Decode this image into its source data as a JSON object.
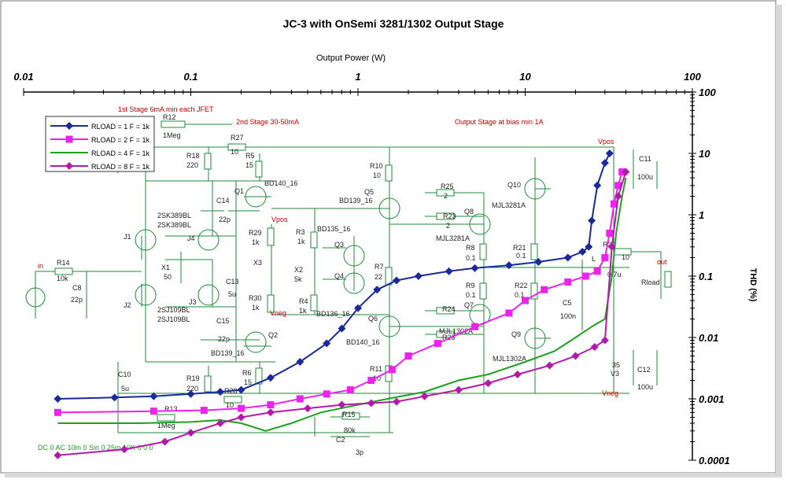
{
  "chart_data": {
    "type": "line",
    "title": "JC-3 with OnSemi 3281/1302 Output Stage",
    "xlabel": "Output Power (W)",
    "ylabel": "THD (%)",
    "xscale": "log",
    "yscale": "log",
    "xlim": [
      0.01,
      100
    ],
    "ylim": [
      0.0001,
      100
    ],
    "x_ticks": [
      "0.01",
      "0.1",
      "1",
      "10",
      "100"
    ],
    "y_ticks": [
      "100",
      "10",
      "1",
      "0.1",
      "0.01",
      "0.001",
      "0.0001"
    ],
    "legend_position": "top-left",
    "grid": false,
    "series": [
      {
        "name": "RLOAD = 1 F = 1k",
        "color": "#1a2a9a",
        "marker": "diamond",
        "x": [
          0.016,
          0.035,
          0.06,
          0.1,
          0.15,
          0.2,
          0.3,
          0.45,
          0.65,
          0.8,
          1.0,
          1.3,
          1.7,
          2.3,
          3.5,
          5,
          8,
          12,
          18,
          22,
          24,
          25,
          27,
          30,
          32
        ],
        "y": [
          0.001,
          0.00105,
          0.0011,
          0.0012,
          0.0013,
          0.0014,
          0.0022,
          0.004,
          0.008,
          0.014,
          0.03,
          0.06,
          0.085,
          0.1,
          0.12,
          0.135,
          0.15,
          0.17,
          0.2,
          0.25,
          0.3,
          0.8,
          3,
          7,
          10
        ]
      },
      {
        "name": "RLOAD = 2 F = 1k",
        "color": "#ee22ee",
        "marker": "square",
        "x": [
          0.016,
          0.06,
          0.12,
          0.2,
          0.3,
          0.45,
          0.65,
          0.9,
          1.2,
          1.6,
          2.0,
          3,
          5,
          8,
          10,
          13,
          18,
          23,
          27,
          30,
          32,
          34,
          36,
          38
        ],
        "y": [
          0.0006,
          0.00063,
          0.00065,
          0.0007,
          0.0008,
          0.001,
          0.0012,
          0.0014,
          0.002,
          0.003,
          0.005,
          0.008,
          0.015,
          0.025,
          0.04,
          0.06,
          0.08,
          0.1,
          0.12,
          0.2,
          0.5,
          1.5,
          3,
          5
        ]
      },
      {
        "name": "RLOAD = 4 F = 1k",
        "color": "#20a020",
        "marker": "none",
        "x": [
          0.016,
          0.05,
          0.1,
          0.15,
          0.2,
          0.28,
          0.4,
          0.6,
          1.0,
          1.5,
          2.5,
          4,
          6,
          10,
          15,
          20,
          25,
          30,
          33,
          35,
          38,
          40
        ],
        "y": [
          0.0004,
          0.0004,
          0.00042,
          0.00045,
          0.0004,
          0.0003,
          0.0004,
          0.0006,
          0.0008,
          0.001,
          0.0013,
          0.002,
          0.0025,
          0.004,
          0.006,
          0.01,
          0.015,
          0.02,
          0.1,
          0.5,
          2,
          4
        ]
      },
      {
        "name": "RLOAD = 8 F = 1k",
        "color": "#b21aa8",
        "marker": "diamond",
        "x": [
          0.016,
          0.04,
          0.07,
          0.1,
          0.15,
          0.2,
          0.3,
          0.5,
          0.8,
          1.2,
          1.7,
          2.5,
          4,
          6,
          9,
          14,
          20,
          26,
          30,
          33,
          36,
          40
        ],
        "y": [
          0.00012,
          0.00015,
          0.0002,
          0.00028,
          0.0004,
          0.0005,
          0.0006,
          0.0007,
          0.0008,
          0.00085,
          0.0009,
          0.0011,
          0.0014,
          0.0018,
          0.0025,
          0.0035,
          0.005,
          0.007,
          0.009,
          0.3,
          2,
          5
        ]
      }
    ]
  },
  "schematic_labels": [
    "1st Stage 6mA min each JFET",
    "2nd Stage 30-50mA",
    "Output Stage at bias min 1A",
    "R12",
    "1Meg",
    "R27",
    "10",
    "R18",
    "220",
    "R5",
    "15",
    "Q1",
    "BD140_16",
    "C14",
    "22p",
    "2SK389BL",
    "2SK389BL",
    "J1",
    "J4",
    "X1",
    "50",
    "J2",
    "J3",
    "2SJ109BL",
    "2SJ109BL",
    "C13",
    "5u",
    "C15",
    "22p",
    "Q2",
    "BD139_16",
    "R19",
    "220",
    "R6",
    "15",
    "R28",
    "10",
    "R13",
    "1Meg",
    "C10",
    "5u",
    "in",
    "R14",
    "10k",
    "C8",
    "22p",
    "Vpos",
    "R29",
    "1k",
    "X3",
    "R30",
    "1k",
    "Vneg",
    "R3",
    "1k",
    "X2",
    "5k",
    "R4",
    "1k",
    "BD135_16",
    "Q3",
    "Q4",
    "BD136_16",
    "R10",
    "10",
    "Q5",
    "BD139_16",
    "R7",
    "22",
    "Q6",
    "BD140_16",
    "R11",
    "10",
    "R25",
    "2",
    "R23",
    "2",
    "Q8",
    "MJL3281A",
    "Q10",
    "MJL3281A",
    "R8",
    "0.1",
    "R21",
    "0.1",
    "R9",
    "0.1",
    "R22",
    "0.1",
    "R24",
    "R26",
    "Q7",
    "MJL1302A",
    "Q9",
    "MJL1302A",
    "C5",
    "100n",
    "L",
    "R20",
    "10",
    "0.7u",
    "out",
    "Rload",
    "Vpos",
    "C11",
    "100u",
    "35",
    "V3",
    "C12",
    "100u",
    "Vneg",
    "R15",
    "80k",
    "C2",
    "3p",
    "DC 0 AC 10m 0 Sin 0 25m 10K 0 0 0"
  ]
}
